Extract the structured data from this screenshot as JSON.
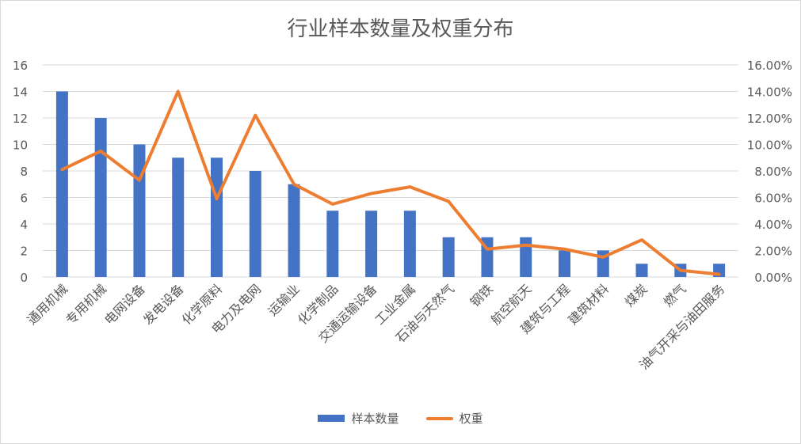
{
  "chart_data": {
    "type": "bar",
    "title": "行业样本数量及权重分布",
    "categories": [
      "通用机械",
      "专用机械",
      "电网设备",
      "发电设备",
      "化学原料",
      "电力及电网",
      "运输业",
      "化学制品",
      "交通运输设备",
      "工业金属",
      "石油与天然气",
      "钢铁",
      "航空航天",
      "建筑与工程",
      "建筑材料",
      "煤炭",
      "燃气",
      "油气开采与油田服务"
    ],
    "series": [
      {
        "name": "样本数量",
        "type": "bar",
        "axis": "left",
        "color": "#4472c4",
        "values": [
          14,
          12,
          10,
          9,
          9,
          8,
          7,
          5,
          5,
          5,
          3,
          3,
          3,
          2,
          2,
          1,
          1,
          1
        ]
      },
      {
        "name": "权重",
        "type": "line",
        "axis": "right",
        "color": "#ed7d31",
        "values": [
          0.081,
          0.095,
          0.073,
          0.14,
          0.059,
          0.122,
          0.07,
          0.055,
          0.063,
          0.068,
          0.057,
          0.021,
          0.024,
          0.021,
          0.015,
          0.028,
          0.005,
          0.002
        ]
      }
    ],
    "ylim_left": [
      0,
      16
    ],
    "yticks_left": [
      "0",
      "2",
      "4",
      "6",
      "8",
      "10",
      "12",
      "14",
      "16"
    ],
    "ylim_right": [
      0,
      0.16
    ],
    "yticks_right": [
      "0.00%",
      "2.00%",
      "4.00%",
      "6.00%",
      "8.00%",
      "10.00%",
      "12.00%",
      "14.00%",
      "16.00%"
    ],
    "grid": true,
    "legend_position": "bottom"
  }
}
